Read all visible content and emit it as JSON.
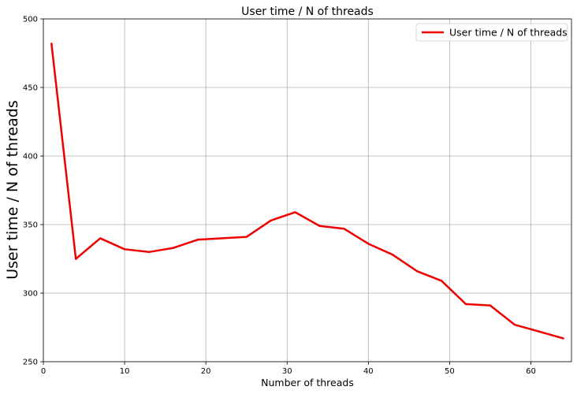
{
  "chart_data": {
    "type": "line",
    "title": "User time / N of threads",
    "xlabel": "Number of threads",
    "ylabel": "User time / N of threads",
    "xlim": [
      0,
      65
    ],
    "ylim": [
      250,
      500
    ],
    "xticks": [
      0,
      10,
      20,
      30,
      40,
      50,
      60
    ],
    "yticks": [
      250,
      300,
      350,
      400,
      450,
      500
    ],
    "grid": true,
    "legend_position": "top-right",
    "series": [
      {
        "name": "User time / N of threads",
        "color": "#ee0000",
        "x": [
          1,
          4,
          7,
          10,
          13,
          16,
          19,
          22,
          25,
          28,
          31,
          34,
          37,
          40,
          43,
          46,
          49,
          52,
          55,
          58,
          61,
          64
        ],
        "y": [
          482,
          325,
          340,
          332,
          330,
          333,
          339,
          340,
          341,
          353,
          359,
          349,
          347,
          336,
          328,
          316,
          309,
          292,
          291,
          277,
          272,
          267
        ]
      }
    ]
  }
}
